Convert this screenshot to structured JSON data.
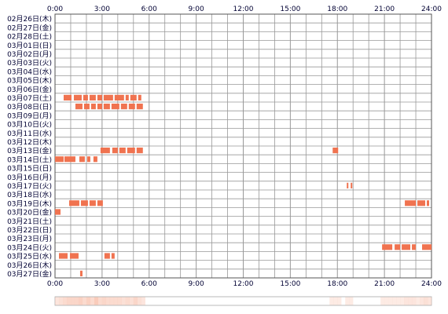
{
  "chart_data": {
    "type": "heatmap",
    "title": "",
    "xlabel": "",
    "ylabel": "",
    "x_unit": "hour",
    "xlim": [
      0,
      24
    ],
    "x_tick_values": [
      0,
      3,
      6,
      9,
      12,
      15,
      18,
      21,
      24
    ],
    "x_tick_labels": [
      "0:00",
      "3:00",
      "6:00",
      "9:00",
      "12:00",
      "15:00",
      "18:00",
      "21:00",
      "24:00"
    ],
    "grid": true,
    "colors": {
      "active": "#f07350",
      "active_light": "#f7a283",
      "grid": "#999999",
      "border": "#555555",
      "label": "#000033",
      "summary_fill": "#f9ccbb"
    },
    "rows": [
      {
        "label": "02月26日(木)",
        "segments": []
      },
      {
        "label": "02月27日(金)",
        "segments": []
      },
      {
        "label": "02月28日(土)",
        "segments": []
      },
      {
        "label": "03月01日(日)",
        "segments": []
      },
      {
        "label": "03月02日(月)",
        "segments": []
      },
      {
        "label": "03月03日(火)",
        "segments": []
      },
      {
        "label": "03月04日(水)",
        "segments": []
      },
      {
        "label": "03月05日(木)",
        "segments": []
      },
      {
        "label": "03月06日(金)",
        "segments": []
      },
      {
        "label": "03月07日(土)",
        "segments": [
          [
            0.55,
            1.05
          ],
          [
            1.2,
            1.7
          ],
          [
            1.8,
            2.1
          ],
          [
            2.2,
            2.6
          ],
          [
            2.7,
            3.0
          ],
          [
            3.1,
            3.7
          ],
          [
            3.8,
            4.4
          ],
          [
            4.5,
            4.7
          ],
          [
            4.8,
            5.2
          ],
          [
            5.3,
            5.5
          ]
        ]
      },
      {
        "label": "03月08日(日)",
        "segments": [
          [
            1.3,
            1.75
          ],
          [
            1.85,
            2.2
          ],
          [
            2.3,
            2.6
          ],
          [
            2.7,
            3.0
          ],
          [
            3.1,
            3.5
          ],
          [
            3.6,
            4.1
          ],
          [
            4.2,
            4.6
          ],
          [
            4.7,
            5.1
          ],
          [
            5.2,
            5.6
          ]
        ]
      },
      {
        "label": "03月09日(月)",
        "segments": []
      },
      {
        "label": "03月10日(火)",
        "segments": []
      },
      {
        "label": "03月11日(水)",
        "segments": []
      },
      {
        "label": "03月12日(木)",
        "segments": []
      },
      {
        "label": "03月13日(金)",
        "segments": [
          [
            2.9,
            3.5
          ],
          [
            3.65,
            4.0
          ],
          [
            4.1,
            4.5
          ],
          [
            4.6,
            5.1
          ],
          [
            5.2,
            5.6
          ]
        ]
      },
      {
        "label": "03月14日(土)",
        "segments": [
          [
            0.0,
            0.55
          ],
          [
            0.6,
            1.3
          ],
          [
            1.55,
            1.9
          ],
          [
            2.05,
            2.25
          ],
          [
            2.45,
            2.7
          ]
        ]
      },
      {
        "label": "03月15日(日)",
        "segments": []
      },
      {
        "label": "03月16日(月)",
        "segments": []
      },
      {
        "label": "03月17日(火)",
        "segments": []
      },
      {
        "label": "03月18日(水)",
        "segments": []
      },
      {
        "label": "03月19日(木)",
        "segments": [
          [
            0.9,
            1.55
          ],
          [
            1.65,
            2.1
          ],
          [
            2.2,
            2.6
          ],
          [
            2.7,
            3.05
          ]
        ]
      },
      {
        "label": "03月20日(金)",
        "segments": [
          [
            0.0,
            0.35
          ]
        ]
      },
      {
        "label": "03月21日(土)",
        "segments": []
      },
      {
        "label": "03月22日(日)",
        "segments": []
      },
      {
        "label": "03月23日(月)",
        "segments": []
      },
      {
        "label": "03月24日(火)",
        "segments": [
          [
            20.85,
            21.5
          ],
          [
            21.65,
            22.0
          ],
          [
            22.1,
            22.65
          ],
          [
            22.75,
            23.0
          ],
          [
            23.4,
            24.0
          ]
        ]
      },
      {
        "label": "03月25日(水)",
        "segments": [
          [
            0.25,
            0.8
          ],
          [
            0.95,
            1.5
          ],
          [
            3.15,
            3.5
          ],
          [
            3.6,
            3.8
          ]
        ]
      },
      {
        "label": "03月26日(木)",
        "segments": []
      },
      {
        "label": "03月27日(金)",
        "segments": []
      }
    ],
    "extra_segments": [
      {
        "row": 15,
        "segments": [
          [
            17.7,
            18.05
          ]
        ]
      },
      {
        "row": 19,
        "segments": [
          [
            18.6,
            18.7
          ],
          [
            18.85,
            18.95
          ]
        ]
      },
      {
        "row": 21,
        "segments": [
          [
            22.3,
            23.0
          ],
          [
            23.1,
            23.6
          ],
          [
            23.7,
            23.85
          ]
        ]
      },
      {
        "row": 29,
        "segments": [
          [
            1.6,
            1.75
          ]
        ]
      }
    ]
  }
}
